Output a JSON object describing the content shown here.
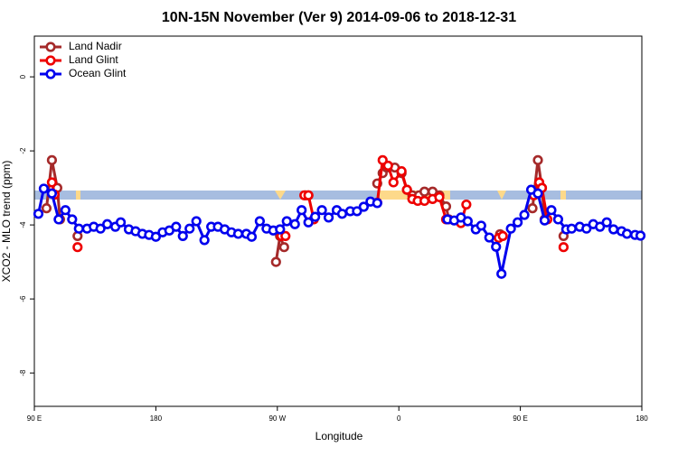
{
  "chart_data": {
    "type": "line",
    "title": "10N-15N November (Ver 9)   2014-09-06 to 2018-12-31",
    "x_label": "Longitude",
    "y_label": "XCO2 - MLO trend (ppm)",
    "xlim": [
      90,
      540
    ],
    "xticks": [
      {
        "value": 90,
        "label": "90 E"
      },
      {
        "value": 180,
        "label": "180"
      },
      {
        "value": 270,
        "label": "90 W"
      },
      {
        "value": 360,
        "label": "0"
      },
      {
        "value": 450,
        "label": "90 E"
      },
      {
        "value": 540,
        "label": "180"
      }
    ],
    "ylim": [
      -8.9,
      1.1
    ],
    "yticks": [
      0,
      -2,
      -4,
      -6,
      -8
    ],
    "legend": "top-left",
    "series": [
      {
        "name": "Land Nadir",
        "color": "#a52a2a",
        "x": [
          99,
          103,
          107,
          109,
          115,
          122,
          200,
          269,
          272,
          275,
          285,
          291,
          293,
          320,
          344,
          348,
          351,
          357,
          362,
          366,
          370,
          375,
          379,
          385,
          390,
          395,
          397,
          410,
          435,
          445,
          459,
          463,
          466,
          468,
          475,
          482
        ],
        "values": [
          -3.55,
          -2.25,
          -3.0,
          -3.85,
          null,
          -4.3,
          null,
          -5.0,
          -4.3,
          -4.6,
          null,
          -3.2,
          -3.2,
          null,
          -2.88,
          -2.6,
          -2.45,
          -2.45,
          -2.6,
          -3.05,
          -3.2,
          -3.2,
          -3.1,
          -3.1,
          -3.2,
          -3.5,
          -3.85,
          null,
          -4.25,
          null,
          -3.55,
          -2.25,
          -3.0,
          -3.85,
          null,
          -4.3
        ]
      },
      {
        "name": "Land Glint",
        "color": "#ee0000",
        "x": [
          103,
          105,
          110,
          122,
          200,
          273,
          276,
          285,
          290,
          293,
          297,
          320,
          344,
          348,
          352,
          356,
          362,
          366,
          370,
          374,
          379,
          385,
          390,
          395,
          406,
          410,
          420,
          434,
          437,
          450,
          460,
          464,
          466,
          470,
          476,
          482
        ],
        "values": [
          -2.85,
          -3.18,
          null,
          -4.6,
          null,
          -4.3,
          -4.3,
          null,
          -3.2,
          -3.2,
          -3.85,
          null,
          -3.4,
          -2.25,
          -2.4,
          -2.85,
          -2.55,
          -3.05,
          -3.3,
          -3.35,
          -3.35,
          -3.3,
          -3.25,
          -3.85,
          -3.95,
          -3.45,
          null,
          -4.35,
          -4.3,
          null,
          -3.2,
          -2.85,
          -3.0,
          -3.85,
          null,
          -4.6
        ]
      },
      {
        "name": "Ocean Glint",
        "color": "#0000ee",
        "x": [
          93,
          97,
          103,
          108,
          113,
          118,
          123,
          129,
          134,
          139,
          144,
          150,
          154,
          160,
          165,
          170,
          175,
          180,
          185,
          190,
          195,
          200,
          205,
          210,
          216,
          221,
          226,
          231,
          236,
          241,
          247,
          251,
          257,
          262,
          267,
          272,
          277,
          283,
          288,
          293,
          298,
          303,
          308,
          314,
          318,
          324,
          329,
          334,
          339,
          344,
          370,
          396,
          401,
          406,
          411,
          417,
          421,
          427,
          432,
          436,
          443,
          448,
          453,
          458,
          463,
          468,
          473,
          478,
          484,
          488,
          494,
          499,
          504,
          509,
          514,
          519,
          525,
          529,
          535,
          539
        ],
        "values": [
          -3.7,
          -3.02,
          -3.15,
          -3.85,
          -3.6,
          -3.85,
          -4.1,
          -4.1,
          -4.05,
          -4.1,
          -3.98,
          -4.05,
          -3.93,
          -4.12,
          -4.17,
          -4.24,
          -4.27,
          -4.32,
          -4.2,
          -4.15,
          -4.05,
          -4.3,
          -4.1,
          -3.9,
          -4.41,
          -4.05,
          -4.05,
          -4.12,
          -4.2,
          -4.24,
          -4.24,
          -4.32,
          -3.9,
          -4.1,
          -4.15,
          -4.12,
          -3.9,
          -3.98,
          -3.6,
          -3.93,
          -3.78,
          -3.6,
          -3.8,
          -3.6,
          -3.7,
          -3.63,
          -3.63,
          -3.51,
          -3.37,
          -3.41,
          null,
          -3.85,
          -3.88,
          -3.8,
          -3.9,
          -4.12,
          -4.02,
          -4.34,
          -4.59,
          -5.32,
          -4.1,
          -3.93,
          -3.73,
          -3.05,
          -3.15,
          -3.88,
          -3.6,
          -3.85,
          -4.12,
          -4.1,
          -4.05,
          -4.1,
          -3.98,
          -4.05,
          -3.93,
          -4.12,
          -4.17,
          -4.24,
          -4.27,
          -4.29
        ]
      }
    ]
  }
}
